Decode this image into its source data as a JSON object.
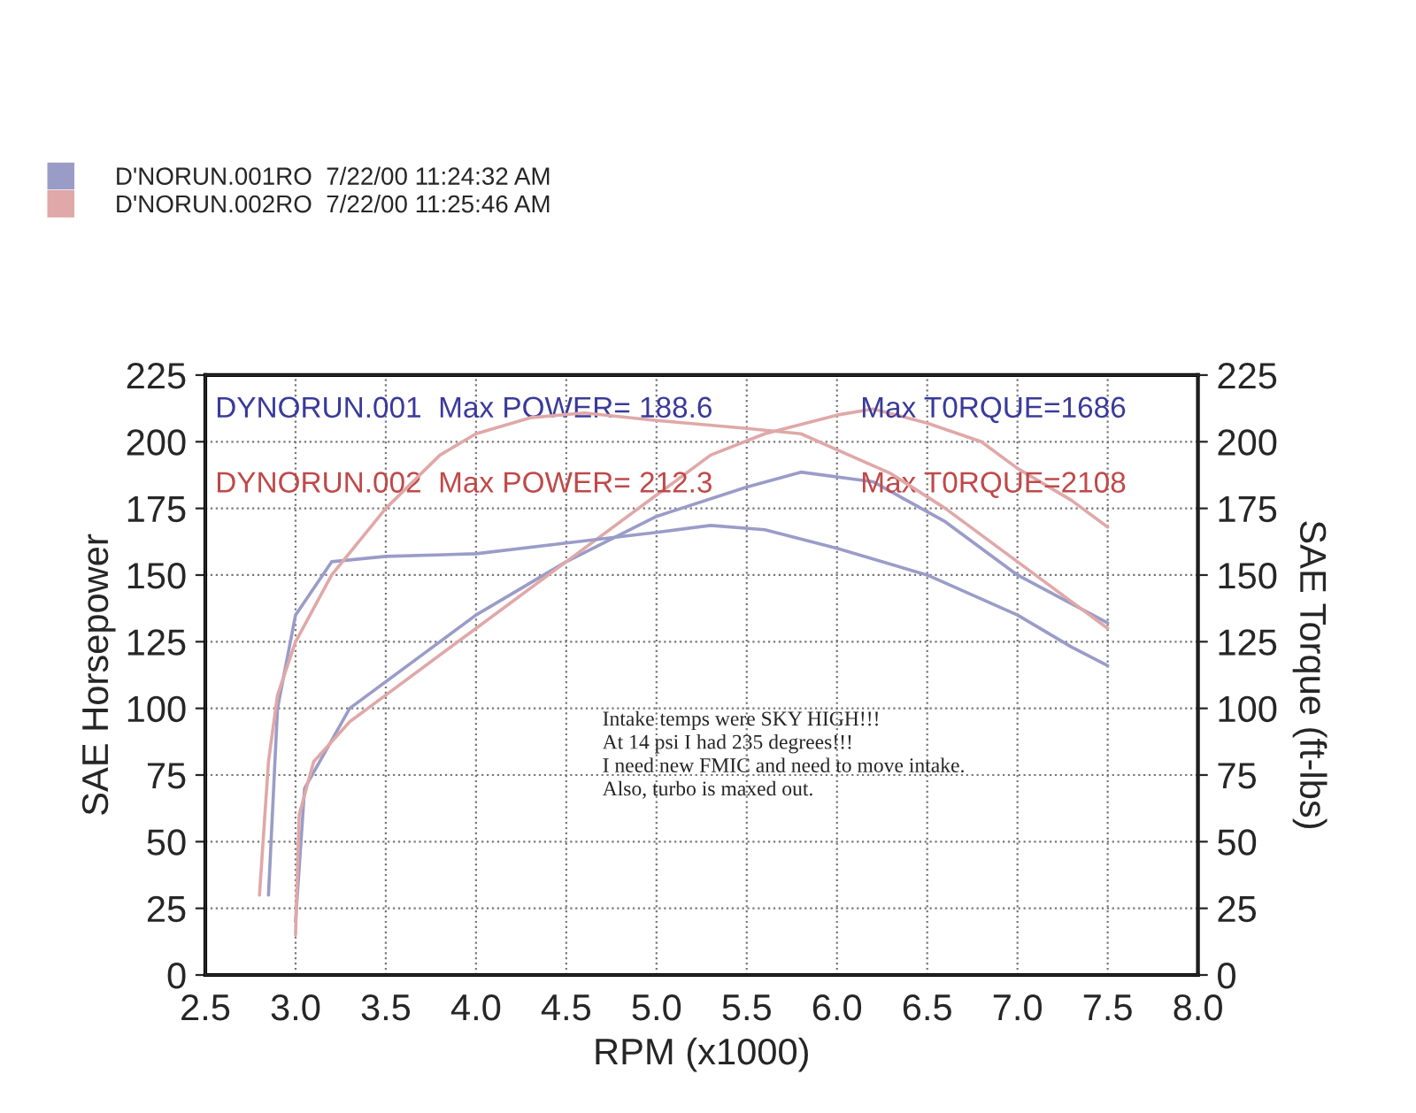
{
  "chart_data": {
    "type": "line",
    "xlabel": "RPM (x1000)",
    "ylabel": "SAE Horsepower",
    "y2label": "SAE Torque (ft-lbs)",
    "xlim": [
      2.5,
      8.0
    ],
    "xticks": [
      {
        "value": 2.5,
        "label": "2.5"
      },
      {
        "value": 3,
        "label": "3.0"
      },
      {
        "value": 3.5,
        "label": "3.5"
      },
      {
        "value": 4,
        "label": "4.0"
      },
      {
        "value": 4.5,
        "label": "4.5"
      },
      {
        "value": 5,
        "label": "5.0"
      },
      {
        "value": 5.5,
        "label": "5.5"
      },
      {
        "value": 6,
        "label": "6.0"
      },
      {
        "value": 6.5,
        "label": "6.5"
      },
      {
        "value": 7,
        "label": "7.0"
      },
      {
        "value": 7.5,
        "label": "7.5"
      },
      {
        "value": 8,
        "label": "8.0"
      }
    ],
    "ylim": [
      0,
      225
    ],
    "yticks": [
      0,
      25,
      50,
      75,
      100,
      125,
      150,
      175,
      200,
      225
    ],
    "y2lim": [
      0,
      225
    ],
    "y2ticks": [
      0,
      25,
      50,
      75,
      100,
      125,
      150,
      175,
      200,
      225
    ],
    "grid": true,
    "legend": "top left",
    "line_style": "solid",
    "marker": "none",
    "series": [
      {
        "name": "D'NORUN.001RO  7/22/00 11:24:32 AM",
        "color": "#9a9cc8",
        "x": [
          3.0,
          3.05,
          3.3,
          3.7,
          4.0,
          4.5,
          5.0,
          5.5,
          5.8,
          6.2,
          6.6,
          7.0,
          7.5
        ],
        "values": [
          20,
          70,
          100,
          120,
          135,
          155,
          172,
          183,
          188.6,
          185,
          170,
          150,
          132
        ]
      },
      {
        "color": "#9a9cc8",
        "axis": "y2",
        "x": [
          2.85,
          2.9,
          3.0,
          3.2,
          3.5,
          4.0,
          4.5,
          5.0,
          5.3,
          5.6,
          6.0,
          6.5,
          7.0,
          7.3,
          7.5
        ],
        "values": [
          30,
          100,
          135,
          155,
          157,
          158,
          162,
          166,
          168.6,
          167,
          160,
          150,
          135,
          123,
          116
        ]
      },
      {
        "name": "D'NORUN.002RO  7/22/00 11:25:46 AM",
        "color": "#e0a8a8",
        "x": [
          3.0,
          3.02,
          3.1,
          3.3,
          3.5,
          4.0,
          4.5,
          5.0,
          5.3,
          5.6,
          6.0,
          6.2,
          6.5,
          6.8,
          7.0,
          7.3,
          7.5
        ],
        "values": [
          15,
          60,
          80,
          95,
          105,
          130,
          155,
          180,
          195,
          203,
          210,
          212.3,
          207,
          200,
          190,
          178,
          168
        ]
      },
      {
        "color": "#e0a8a8",
        "axis": "y2",
        "x": [
          2.8,
          2.85,
          2.9,
          3.0,
          3.2,
          3.5,
          3.8,
          4.0,
          4.3,
          4.6,
          5.0,
          5.5,
          5.8,
          6.0,
          6.3,
          6.6,
          7.0,
          7.3,
          7.5
        ],
        "values": [
          30,
          80,
          105,
          125,
          150,
          175,
          195,
          203,
          209,
          210.8,
          208,
          205,
          203,
          197,
          188,
          175,
          155,
          140,
          130
        ]
      }
    ],
    "annotations": [
      "DYNORUN.001  Max POWER= 188.6",
      "Max T0RQUE=1686",
      "DYNORUN.002  Max POWER= 212.3",
      "Max T0RQUE=2108",
      "Intake temps were SKY HIGH!!!\nAt 14 psi I had 235 degrees!!!\nI need new FMIC and need to move intake.\nAlso, turbo is maxed out."
    ]
  }
}
